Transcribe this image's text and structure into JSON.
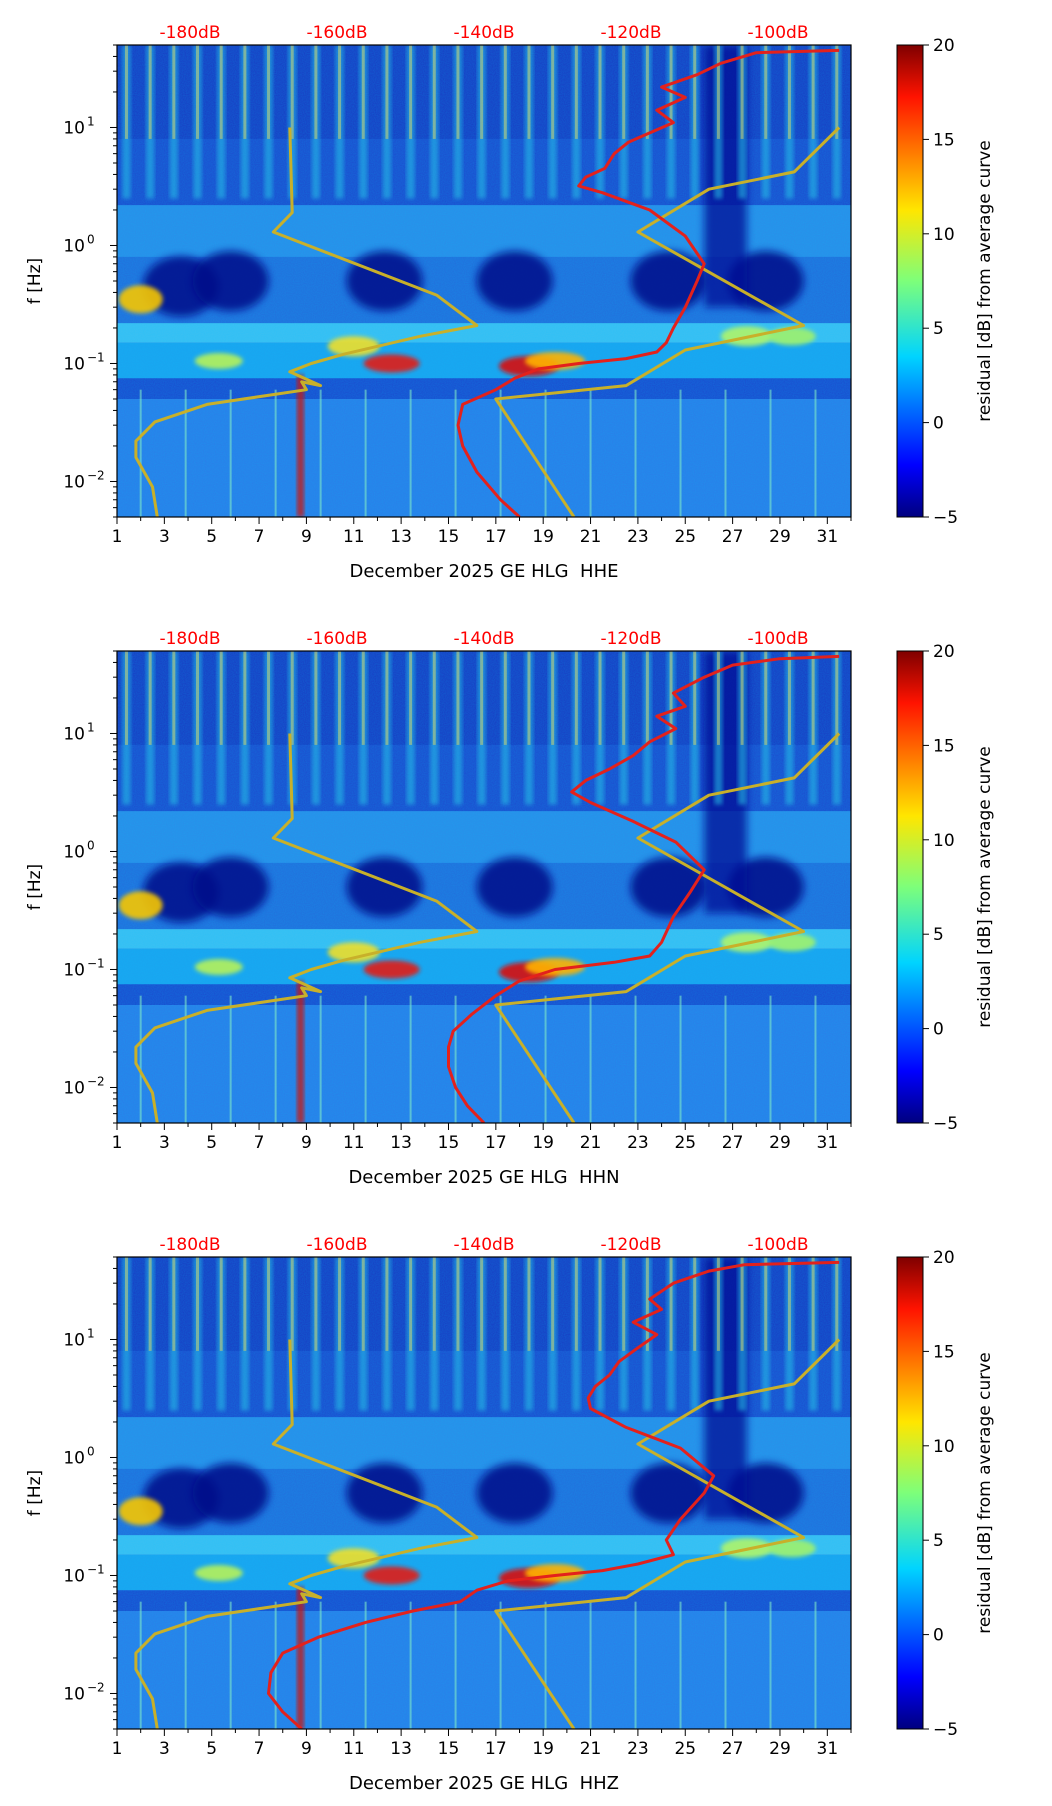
{
  "figure": {
    "xticks": [
      "1",
      "3",
      "5",
      "7",
      "9",
      "11",
      "13",
      "15",
      "17",
      "19",
      "21",
      "23",
      "25",
      "27",
      "29",
      "31"
    ],
    "yticks": [
      {
        "value": 0.01,
        "base": "10",
        "exp": "−2"
      },
      {
        "value": 0.1,
        "base": "10",
        "exp": "−1"
      },
      {
        "value": 1,
        "base": "10",
        "exp": "0"
      },
      {
        "value": 10,
        "base": "10",
        "exp": "1"
      }
    ],
    "top_labels": [
      "-180dB",
      "-160dB",
      "-140dB",
      "-120dB",
      "-100dB"
    ],
    "ylabel": "f [Hz]",
    "colorbar_label": "residual [dB] from average curve",
    "colorbar_ticks": [
      "20",
      "15",
      "10",
      "5",
      "0",
      "−5"
    ],
    "colors": {
      "top_label": "#ff0000",
      "db_curve": "#e3211c",
      "model_curve": "#c8b02a"
    }
  },
  "chart_data": [
    {
      "type": "heatmap",
      "title": "",
      "xlabel": "December 2025 GE HLG  HHE",
      "ylabel": "f [Hz]",
      "xlim": [
        1,
        32
      ],
      "ylim": [
        0.005,
        50
      ],
      "yscale": "log",
      "colorbar": {
        "label": "residual [dB] from average curve",
        "range": [
          -5,
          20
        ],
        "ticks": [
          20,
          15,
          10,
          5,
          0,
          -5
        ]
      },
      "top_axis": {
        "labels": [
          "-180dB",
          "-160dB",
          "-140dB",
          "-120dB",
          "-100dB"
        ],
        "positions_day": [
          4.2,
          10.4,
          16.6,
          22.8,
          29.0
        ]
      },
      "series": [
        {
          "name": "red PSD curve",
          "points": [
            [
              18.0,
              0.005
            ],
            [
              17.2,
              0.007
            ],
            [
              16.2,
              0.012
            ],
            [
              15.6,
              0.02
            ],
            [
              15.4,
              0.03
            ],
            [
              15.6,
              0.045
            ],
            [
              17.0,
              0.06
            ],
            [
              17.8,
              0.075
            ],
            [
              18.8,
              0.09
            ],
            [
              20.5,
              0.1
            ],
            [
              22.5,
              0.11
            ],
            [
              23.8,
              0.125
            ],
            [
              24.2,
              0.15
            ],
            [
              24.5,
              0.2
            ],
            [
              25.0,
              0.3
            ],
            [
              25.5,
              0.5
            ],
            [
              25.8,
              0.7
            ],
            [
              25.0,
              1.2
            ],
            [
              23.5,
              2.0
            ],
            [
              21.5,
              2.8
            ],
            [
              20.5,
              3.2
            ],
            [
              20.8,
              3.8
            ],
            [
              21.6,
              4.5
            ],
            [
              22.0,
              6.0
            ],
            [
              22.6,
              7.5
            ],
            [
              23.5,
              9.0
            ],
            [
              24.5,
              11
            ],
            [
              23.8,
              14
            ],
            [
              25.0,
              18
            ],
            [
              24.0,
              22
            ],
            [
              25.5,
              28
            ],
            [
              26.5,
              35
            ],
            [
              28.0,
              43
            ],
            [
              31.5,
              45
            ]
          ]
        },
        {
          "name": "model curve",
          "points": [
            [
              2.7,
              0.005
            ],
            [
              2.5,
              0.009
            ],
            [
              1.8,
              0.016
            ],
            [
              1.8,
              0.022
            ],
            [
              2.6,
              0.032
            ],
            [
              4.8,
              0.045
            ],
            [
              9.0,
              0.06
            ],
            [
              8.8,
              0.07
            ],
            [
              9.6,
              0.065
            ],
            [
              8.3,
              0.085
            ],
            [
              9.2,
              0.1
            ],
            [
              10.6,
              0.12
            ],
            [
              13.8,
              0.17
            ],
            [
              16.2,
              0.21
            ],
            [
              14.5,
              0.38
            ],
            [
              7.6,
              1.3
            ],
            [
              8.4,
              1.9
            ],
            [
              8.3,
              10.0
            ],
            [
              20.3,
              0.005
            ],
            [
              17.0,
              0.05
            ],
            [
              22.5,
              0.065
            ],
            [
              25.0,
              0.13
            ],
            [
              30.0,
              0.21
            ],
            [
              23.0,
              1.3
            ],
            [
              26.0,
              3.0
            ],
            [
              29.6,
              4.2
            ],
            [
              31.5,
              10.0
            ]
          ]
        }
      ]
    },
    {
      "type": "heatmap",
      "title": "",
      "xlabel": "December 2025 GE HLG  HHN",
      "ylabel": "f [Hz]",
      "xlim": [
        1,
        32
      ],
      "ylim": [
        0.005,
        50
      ],
      "yscale": "log",
      "colorbar": {
        "label": "residual [dB] from average curve",
        "range": [
          -5,
          20
        ],
        "ticks": [
          20,
          15,
          10,
          5,
          0,
          -5
        ]
      },
      "top_axis": {
        "labels": [
          "-180dB",
          "-160dB",
          "-140dB",
          "-120dB",
          "-100dB"
        ],
        "positions_day": [
          4.2,
          10.4,
          16.6,
          22.8,
          29.0
        ]
      },
      "series": [
        {
          "name": "red PSD curve",
          "points": [
            [
              16.5,
              0.005
            ],
            [
              15.8,
              0.007
            ],
            [
              15.3,
              0.01
            ],
            [
              15.0,
              0.015
            ],
            [
              15.0,
              0.022
            ],
            [
              15.2,
              0.03
            ],
            [
              16.0,
              0.042
            ],
            [
              17.0,
              0.06
            ],
            [
              18.0,
              0.08
            ],
            [
              19.5,
              0.1
            ],
            [
              22.0,
              0.115
            ],
            [
              23.5,
              0.13
            ],
            [
              24.0,
              0.17
            ],
            [
              24.5,
              0.28
            ],
            [
              25.2,
              0.45
            ],
            [
              25.8,
              0.7
            ],
            [
              24.6,
              1.2
            ],
            [
              22.8,
              1.8
            ],
            [
              21.0,
              2.6
            ],
            [
              20.2,
              3.2
            ],
            [
              20.8,
              4.0
            ],
            [
              21.8,
              5.0
            ],
            [
              22.8,
              6.5
            ],
            [
              23.5,
              8.5
            ],
            [
              24.6,
              11
            ],
            [
              23.8,
              14
            ],
            [
              25.0,
              17
            ],
            [
              24.5,
              22
            ],
            [
              25.8,
              30
            ],
            [
              27.0,
              38
            ],
            [
              29.0,
              43
            ],
            [
              31.5,
              45
            ]
          ]
        },
        {
          "name": "model curve",
          "points": [
            [
              2.7,
              0.005
            ],
            [
              2.5,
              0.009
            ],
            [
              1.8,
              0.016
            ],
            [
              1.8,
              0.022
            ],
            [
              2.6,
              0.032
            ],
            [
              4.8,
              0.045
            ],
            [
              9.0,
              0.06
            ],
            [
              8.8,
              0.07
            ],
            [
              9.6,
              0.065
            ],
            [
              8.3,
              0.085
            ],
            [
              9.2,
              0.1
            ],
            [
              10.6,
              0.12
            ],
            [
              13.8,
              0.17
            ],
            [
              16.2,
              0.21
            ],
            [
              14.5,
              0.38
            ],
            [
              7.6,
              1.3
            ],
            [
              8.4,
              1.9
            ],
            [
              8.3,
              10.0
            ],
            [
              20.3,
              0.005
            ],
            [
              17.0,
              0.05
            ],
            [
              22.5,
              0.065
            ],
            [
              25.0,
              0.13
            ],
            [
              30.0,
              0.21
            ],
            [
              23.0,
              1.3
            ],
            [
              26.0,
              3.0
            ],
            [
              29.6,
              4.2
            ],
            [
              31.5,
              10.0
            ]
          ]
        }
      ]
    },
    {
      "type": "heatmap",
      "title": "",
      "xlabel": "December 2025 GE HLG  HHZ",
      "ylabel": "f [Hz]",
      "xlim": [
        1,
        32
      ],
      "ylim": [
        0.005,
        50
      ],
      "yscale": "log",
      "colorbar": {
        "label": "residual [dB] from average curve",
        "range": [
          -5,
          20
        ],
        "ticks": [
          20,
          15,
          10,
          5,
          0,
          -5
        ]
      },
      "top_axis": {
        "labels": [
          "-180dB",
          "-160dB",
          "-140dB",
          "-120dB",
          "-100dB"
        ],
        "positions_day": [
          4.2,
          10.4,
          16.6,
          22.8,
          29.0
        ]
      },
      "series": [
        {
          "name": "red PSD curve",
          "points": [
            [
              8.8,
              0.005
            ],
            [
              8.0,
              0.007
            ],
            [
              7.4,
              0.01
            ],
            [
              7.5,
              0.015
            ],
            [
              8.0,
              0.022
            ],
            [
              9.5,
              0.03
            ],
            [
              11.5,
              0.04
            ],
            [
              13.5,
              0.05
            ],
            [
              15.5,
              0.06
            ],
            [
              16.2,
              0.075
            ],
            [
              17.5,
              0.09
            ],
            [
              19.5,
              0.1
            ],
            [
              21.5,
              0.11
            ],
            [
              23.0,
              0.125
            ],
            [
              24.5,
              0.15
            ],
            [
              24.2,
              0.2
            ],
            [
              24.8,
              0.3
            ],
            [
              25.8,
              0.5
            ],
            [
              26.2,
              0.7
            ],
            [
              24.8,
              1.2
            ],
            [
              22.5,
              1.8
            ],
            [
              21.0,
              2.6
            ],
            [
              20.9,
              3.2
            ],
            [
              21.2,
              4.0
            ],
            [
              21.8,
              5.0
            ],
            [
              22.2,
              6.5
            ],
            [
              23.0,
              8.5
            ],
            [
              23.8,
              11
            ],
            [
              22.8,
              14
            ],
            [
              24.0,
              18
            ],
            [
              23.5,
              22
            ],
            [
              24.5,
              30
            ],
            [
              26.0,
              38
            ],
            [
              27.5,
              43
            ],
            [
              31.5,
              45
            ]
          ]
        },
        {
          "name": "model curve",
          "points": [
            [
              2.7,
              0.005
            ],
            [
              2.5,
              0.009
            ],
            [
              1.8,
              0.016
            ],
            [
              1.8,
              0.022
            ],
            [
              2.6,
              0.032
            ],
            [
              4.8,
              0.045
            ],
            [
              9.0,
              0.06
            ],
            [
              8.8,
              0.07
            ],
            [
              9.6,
              0.065
            ],
            [
              8.3,
              0.085
            ],
            [
              9.2,
              0.1
            ],
            [
              10.6,
              0.12
            ],
            [
              13.8,
              0.17
            ],
            [
              16.2,
              0.21
            ],
            [
              14.5,
              0.38
            ],
            [
              7.6,
              1.3
            ],
            [
              8.4,
              1.9
            ],
            [
              8.3,
              10.0
            ],
            [
              20.3,
              0.005
            ],
            [
              17.0,
              0.05
            ],
            [
              22.5,
              0.065
            ],
            [
              25.0,
              0.13
            ],
            [
              30.0,
              0.21
            ],
            [
              23.0,
              1.3
            ],
            [
              26.0,
              3.0
            ],
            [
              29.6,
              4.2
            ],
            [
              31.5,
              10.0
            ]
          ]
        }
      ]
    }
  ]
}
